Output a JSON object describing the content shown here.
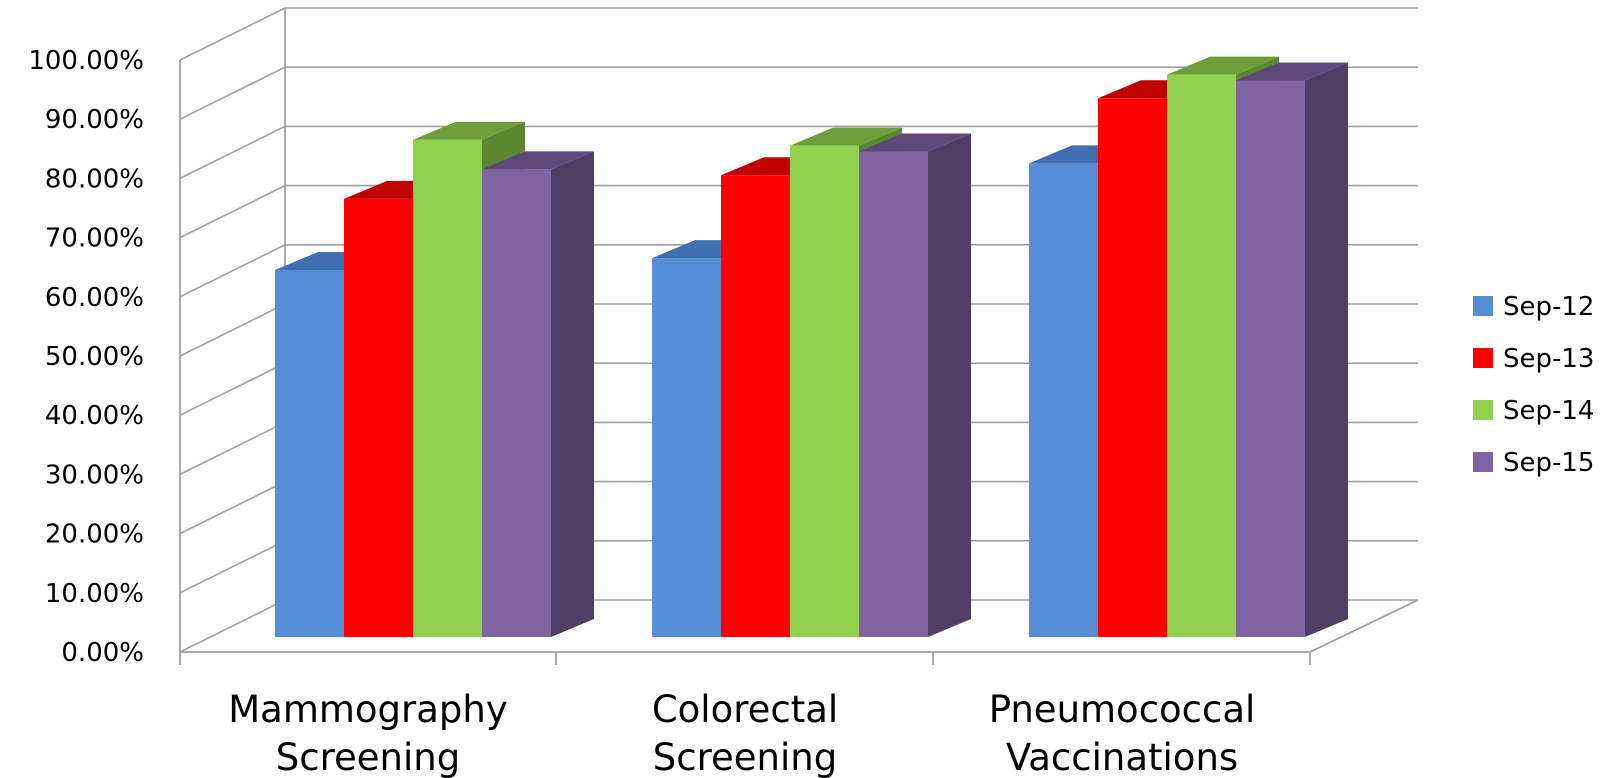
{
  "chart_data": {
    "type": "bar",
    "title": "",
    "xlabel": "",
    "ylabel": "",
    "categories": [
      [
        "Mammography",
        "Screening"
      ],
      [
        "Colorectal",
        "Screening"
      ],
      [
        "Pneumococcal",
        "Vaccinations"
      ]
    ],
    "series": [
      {
        "name": "Sep-12",
        "values": [
          0.62,
          0.64,
          0.8
        ]
      },
      {
        "name": "Sep-13",
        "values": [
          0.74,
          0.78,
          0.91
        ]
      },
      {
        "name": "Sep-14",
        "values": [
          0.84,
          0.83,
          0.95
        ]
      },
      {
        "name": "Sep-15",
        "values": [
          0.79,
          0.82,
          0.94
        ]
      }
    ],
    "ylim": [
      0,
      1
    ],
    "yticks": [
      "0.00%",
      "10.00%",
      "20.00%",
      "30.00%",
      "40.00%",
      "50.00%",
      "60.00%",
      "70.00%",
      "80.00%",
      "90.00%",
      "100.00%"
    ],
    "grid": true,
    "legend_position": "right",
    "style": "3d-clustered-column",
    "colors": {
      "Sep-12": {
        "front": "#558ed5",
        "top": "#3f6fb0",
        "side": "#3a5d94"
      },
      "Sep-13": {
        "front": "#ff0000",
        "top": "#c00000",
        "side": "#a80000"
      },
      "Sep-14": {
        "front": "#92d050",
        "top": "#6d9e3a",
        "side": "#5c8630"
      },
      "Sep-15": {
        "front": "#8064a2",
        "top": "#5f497a",
        "side": "#4f3f66"
      }
    }
  }
}
